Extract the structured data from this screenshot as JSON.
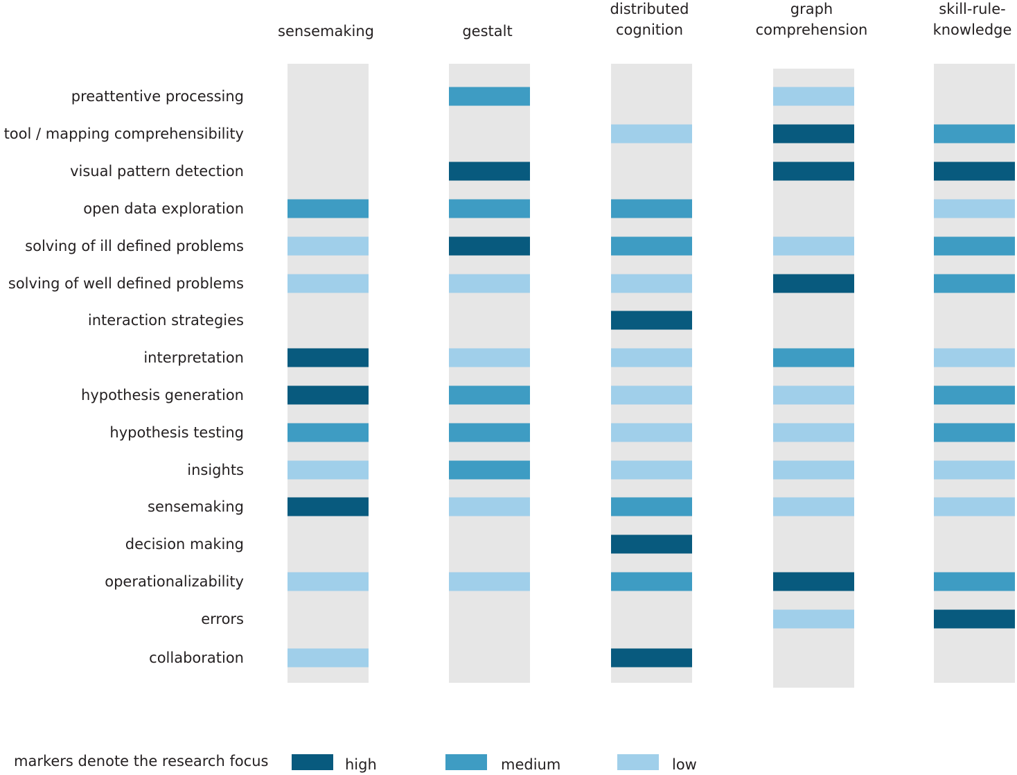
{
  "chart_data": {
    "type": "heatmap",
    "columns": [
      "sensemaking",
      "gestalt",
      "distributed cognition",
      "graph comprehension",
      "skill-rule-knowledge"
    ],
    "column_label_lines": [
      [
        "sensemaking"
      ],
      [
        "gestalt"
      ],
      [
        "distributed",
        "cognition"
      ],
      [
        "graph",
        "comprehension"
      ],
      [
        "skill-rule-",
        "knowledge"
      ]
    ],
    "rows": [
      "preattentive processing",
      "tool / mapping comprehensibility",
      "visual pattern detection",
      "open data exploration",
      "solving of ill defined problems",
      "solving of well defined problems",
      "interaction strategies",
      "interpretation",
      "hypothesis generation",
      "hypothesis testing",
      "insights",
      "sensemaking",
      "decision making",
      "operationalizability",
      "errors",
      "collaboration"
    ],
    "levels": [
      "high",
      "medium",
      "low"
    ],
    "colors": {
      "high": "#085a7e",
      "medium": "#3e9cc3",
      "low": "#a0cfea",
      "track": "#e6e6e6"
    },
    "values": [
      [
        null,
        "medium",
        null,
        "low",
        null
      ],
      [
        null,
        null,
        "low",
        "high",
        "medium"
      ],
      [
        null,
        "high",
        null,
        "high",
        "high"
      ],
      [
        "medium",
        "medium",
        "medium",
        null,
        "low"
      ],
      [
        "low",
        "high",
        "medium",
        "low",
        "medium"
      ],
      [
        "low",
        "low",
        "low",
        "high",
        "medium"
      ],
      [
        null,
        null,
        "high",
        null,
        null
      ],
      [
        "high",
        "low",
        "low",
        "medium",
        "low"
      ],
      [
        "high",
        "medium",
        "low",
        "low",
        "medium"
      ],
      [
        "medium",
        "medium",
        "low",
        "low",
        "medium"
      ],
      [
        "low",
        "medium",
        "low",
        "low",
        "low"
      ],
      [
        "high",
        "low",
        "medium",
        "low",
        "low"
      ],
      [
        null,
        null,
        "high",
        null,
        null
      ],
      [
        "low",
        "low",
        "medium",
        "high",
        "medium"
      ],
      [
        null,
        null,
        null,
        "low",
        "high"
      ],
      [
        "low",
        null,
        "high",
        null,
        null
      ]
    ]
  },
  "legend": {
    "title": "markers  denote the research focus",
    "items": [
      {
        "key": "high",
        "label": "high"
      },
      {
        "key": "medium",
        "label": "medium"
      },
      {
        "key": "low",
        "label": "low"
      }
    ]
  }
}
